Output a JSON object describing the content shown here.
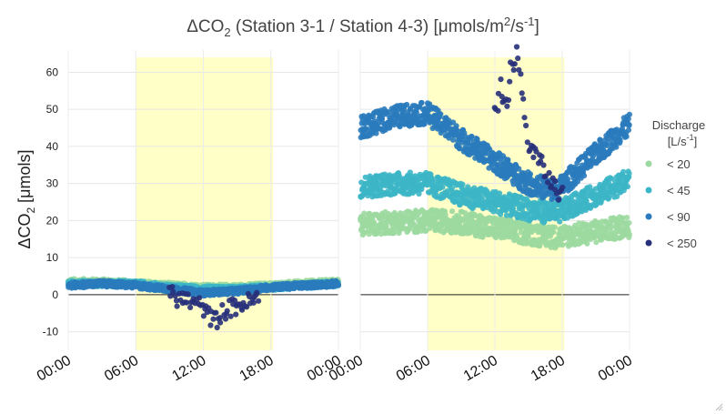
{
  "chart_data": {
    "type": "scatter",
    "title": {
      "prefix": "ΔCO",
      "sub": "2",
      "mid": " (Station 3-1 / Station 4-3) [μmols/m",
      "sup1": "2",
      "mid2": "/s",
      "sup2": "-1",
      "suffix": "]"
    },
    "ylabel": {
      "prefix": "ΔCO",
      "sub": "2",
      "suffix": " [μmols]"
    },
    "ylim": [
      -15,
      66
    ],
    "xlim_hours": [
      0,
      24
    ],
    "y_ticks": [
      -10,
      0,
      10,
      20,
      30,
      40,
      50,
      60
    ],
    "x_tick_labels": [
      "00:00",
      "06:00",
      "12:00",
      "18:00",
      "00:00"
    ],
    "x_tick_hours": [
      0,
      6,
      12,
      18,
      24
    ],
    "daylight_band_hours": [
      6,
      18.2
    ],
    "grid": true,
    "legend": {
      "title": "Discharge",
      "title_unit": {
        "prefix": "[L/s",
        "sup": "-1",
        "suffix": "]"
      },
      "placement": "right",
      "entries": [
        {
          "label": "< 20",
          "color": "#9cd9a0"
        },
        {
          "label": "< 45",
          "color": "#3cb6c6"
        },
        {
          "label": "< 90",
          "color": "#2a7bbd"
        },
        {
          "label": "< 250",
          "color": "#27307a"
        }
      ]
    },
    "panels": [
      {
        "name": "Station 3-1",
        "series": [
          {
            "class": "< 20",
            "hours": [
              0,
              3,
              6,
              9,
              12,
              15,
              18,
              21,
              24
            ],
            "values": [
              3.5,
              3.5,
              3,
              2.5,
              2,
              2,
              2.5,
              3,
              3.5
            ]
          },
          {
            "class": "< 45",
            "hours": [
              0,
              3,
              6,
              9,
              12,
              15,
              18,
              21,
              24
            ],
            "values": [
              3,
              3,
              3,
              2,
              1.5,
              1.5,
              2,
              2.5,
              3
            ]
          },
          {
            "class": "< 90",
            "hours": [
              0,
              3,
              6,
              9,
              12,
              15,
              18,
              21,
              24
            ],
            "values": [
              2.5,
              3,
              2.5,
              1.5,
              0.5,
              1,
              2,
              2.5,
              3
            ]
          },
          {
            "class": "< 250",
            "hours": [
              9,
              10,
              11,
              12,
              12.5,
              13,
              14,
              15,
              16,
              17
            ],
            "values": [
              0,
              -1,
              -2,
              -3.5,
              -6,
              -7,
              -4,
              -3,
              -2,
              -1
            ]
          }
        ]
      },
      {
        "name": "Station 4-3",
        "series": [
          {
            "class": "< 20",
            "hours": [
              0,
              3,
              6,
              9,
              12,
              15,
              17.5,
              21,
              24
            ],
            "values": [
              19,
              19.5,
              20,
              19.5,
              18,
              16.5,
              15.5,
              17,
              18.5
            ]
          },
          {
            "class": "< 45",
            "hours": [
              0,
              3,
              6,
              9,
              12,
              15,
              17.5,
              21,
              24
            ],
            "values": [
              29,
              30,
              30,
              27,
              25,
              23,
              22,
              27,
              31
            ]
          },
          {
            "class": "< 90",
            "hours": [
              0,
              3,
              6,
              9,
              12,
              15,
              17.5,
              21,
              24
            ],
            "values": [
              45,
              48,
              49,
              42,
              36,
              30,
              28,
              38,
              46
            ]
          },
          {
            "class": "< 250",
            "hours": [
              12,
              12.5,
              13,
              13.5,
              14,
              14.5,
              15,
              16,
              17,
              18
            ],
            "values": [
              48,
              56,
              50,
              62,
              65,
              52,
              40,
              36,
              30,
              27
            ]
          }
        ]
      }
    ]
  }
}
